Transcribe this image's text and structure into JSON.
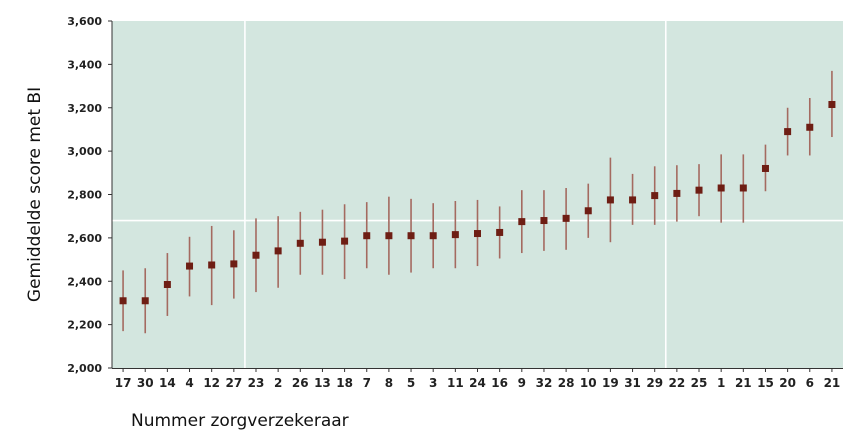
{
  "chart_data": {
    "type": "scatter",
    "title": "",
    "xlabel": "Nummer zorgverzekeraar",
    "ylabel": "Gemiddelde score met BI",
    "ylim": [
      2000,
      3600
    ],
    "y_ticks": [
      "2,000",
      "2,200",
      "2,400",
      "2,600",
      "2,800",
      "3,000",
      "3,200",
      "3,400",
      "3,600"
    ],
    "y_tick_values": [
      2000,
      2200,
      2400,
      2600,
      2800,
      3000,
      3200,
      3400,
      3600
    ],
    "grid": false,
    "categories": [
      "17",
      "30",
      "14",
      "4",
      "12",
      "27",
      "23",
      "2",
      "26",
      "13",
      "18",
      "7",
      "8",
      "5",
      "3",
      "11",
      "24",
      "16",
      "9",
      "32",
      "28",
      "10",
      "19",
      "31",
      "29",
      "22",
      "25",
      "1",
      "21",
      "15",
      "20",
      "6",
      "21"
    ],
    "series": [
      {
        "means": [
          2310,
          2310,
          2385,
          2470,
          2475,
          2480,
          2520,
          2540,
          2575,
          2580,
          2585,
          2610,
          2610,
          2610,
          2610,
          2615,
          2620,
          2625,
          2675,
          2680,
          2690,
          2725,
          2775,
          2775,
          2795,
          2805,
          2820,
          2830,
          2830,
          2920,
          3090,
          3110,
          3215
        ],
        "lower": [
          2170,
          2160,
          2240,
          2330,
          2290,
          2320,
          2350,
          2370,
          2430,
          2430,
          2410,
          2460,
          2430,
          2440,
          2460,
          2460,
          2470,
          2505,
          2530,
          2540,
          2545,
          2600,
          2580,
          2660,
          2660,
          2675,
          2700,
          2670,
          2670,
          2815,
          2980,
          2980,
          3065
        ],
        "upper": [
          2450,
          2460,
          2530,
          2605,
          2655,
          2635,
          2690,
          2700,
          2720,
          2730,
          2755,
          2765,
          2790,
          2780,
          2760,
          2770,
          2775,
          2745,
          2820,
          2820,
          2830,
          2850,
          2970,
          2895,
          2930,
          2935,
          2940,
          2985,
          2985,
          3030,
          3200,
          3245,
          3370
        ]
      }
    ],
    "reference_line_y": 2680,
    "vertical_dividers_after_index": [
      5,
      24
    ],
    "colors": {
      "plot_background": "#d3e6df",
      "marker": "#6e1e14",
      "error_bar": "#a46a60",
      "reference_lines": "#ffffff"
    }
  }
}
